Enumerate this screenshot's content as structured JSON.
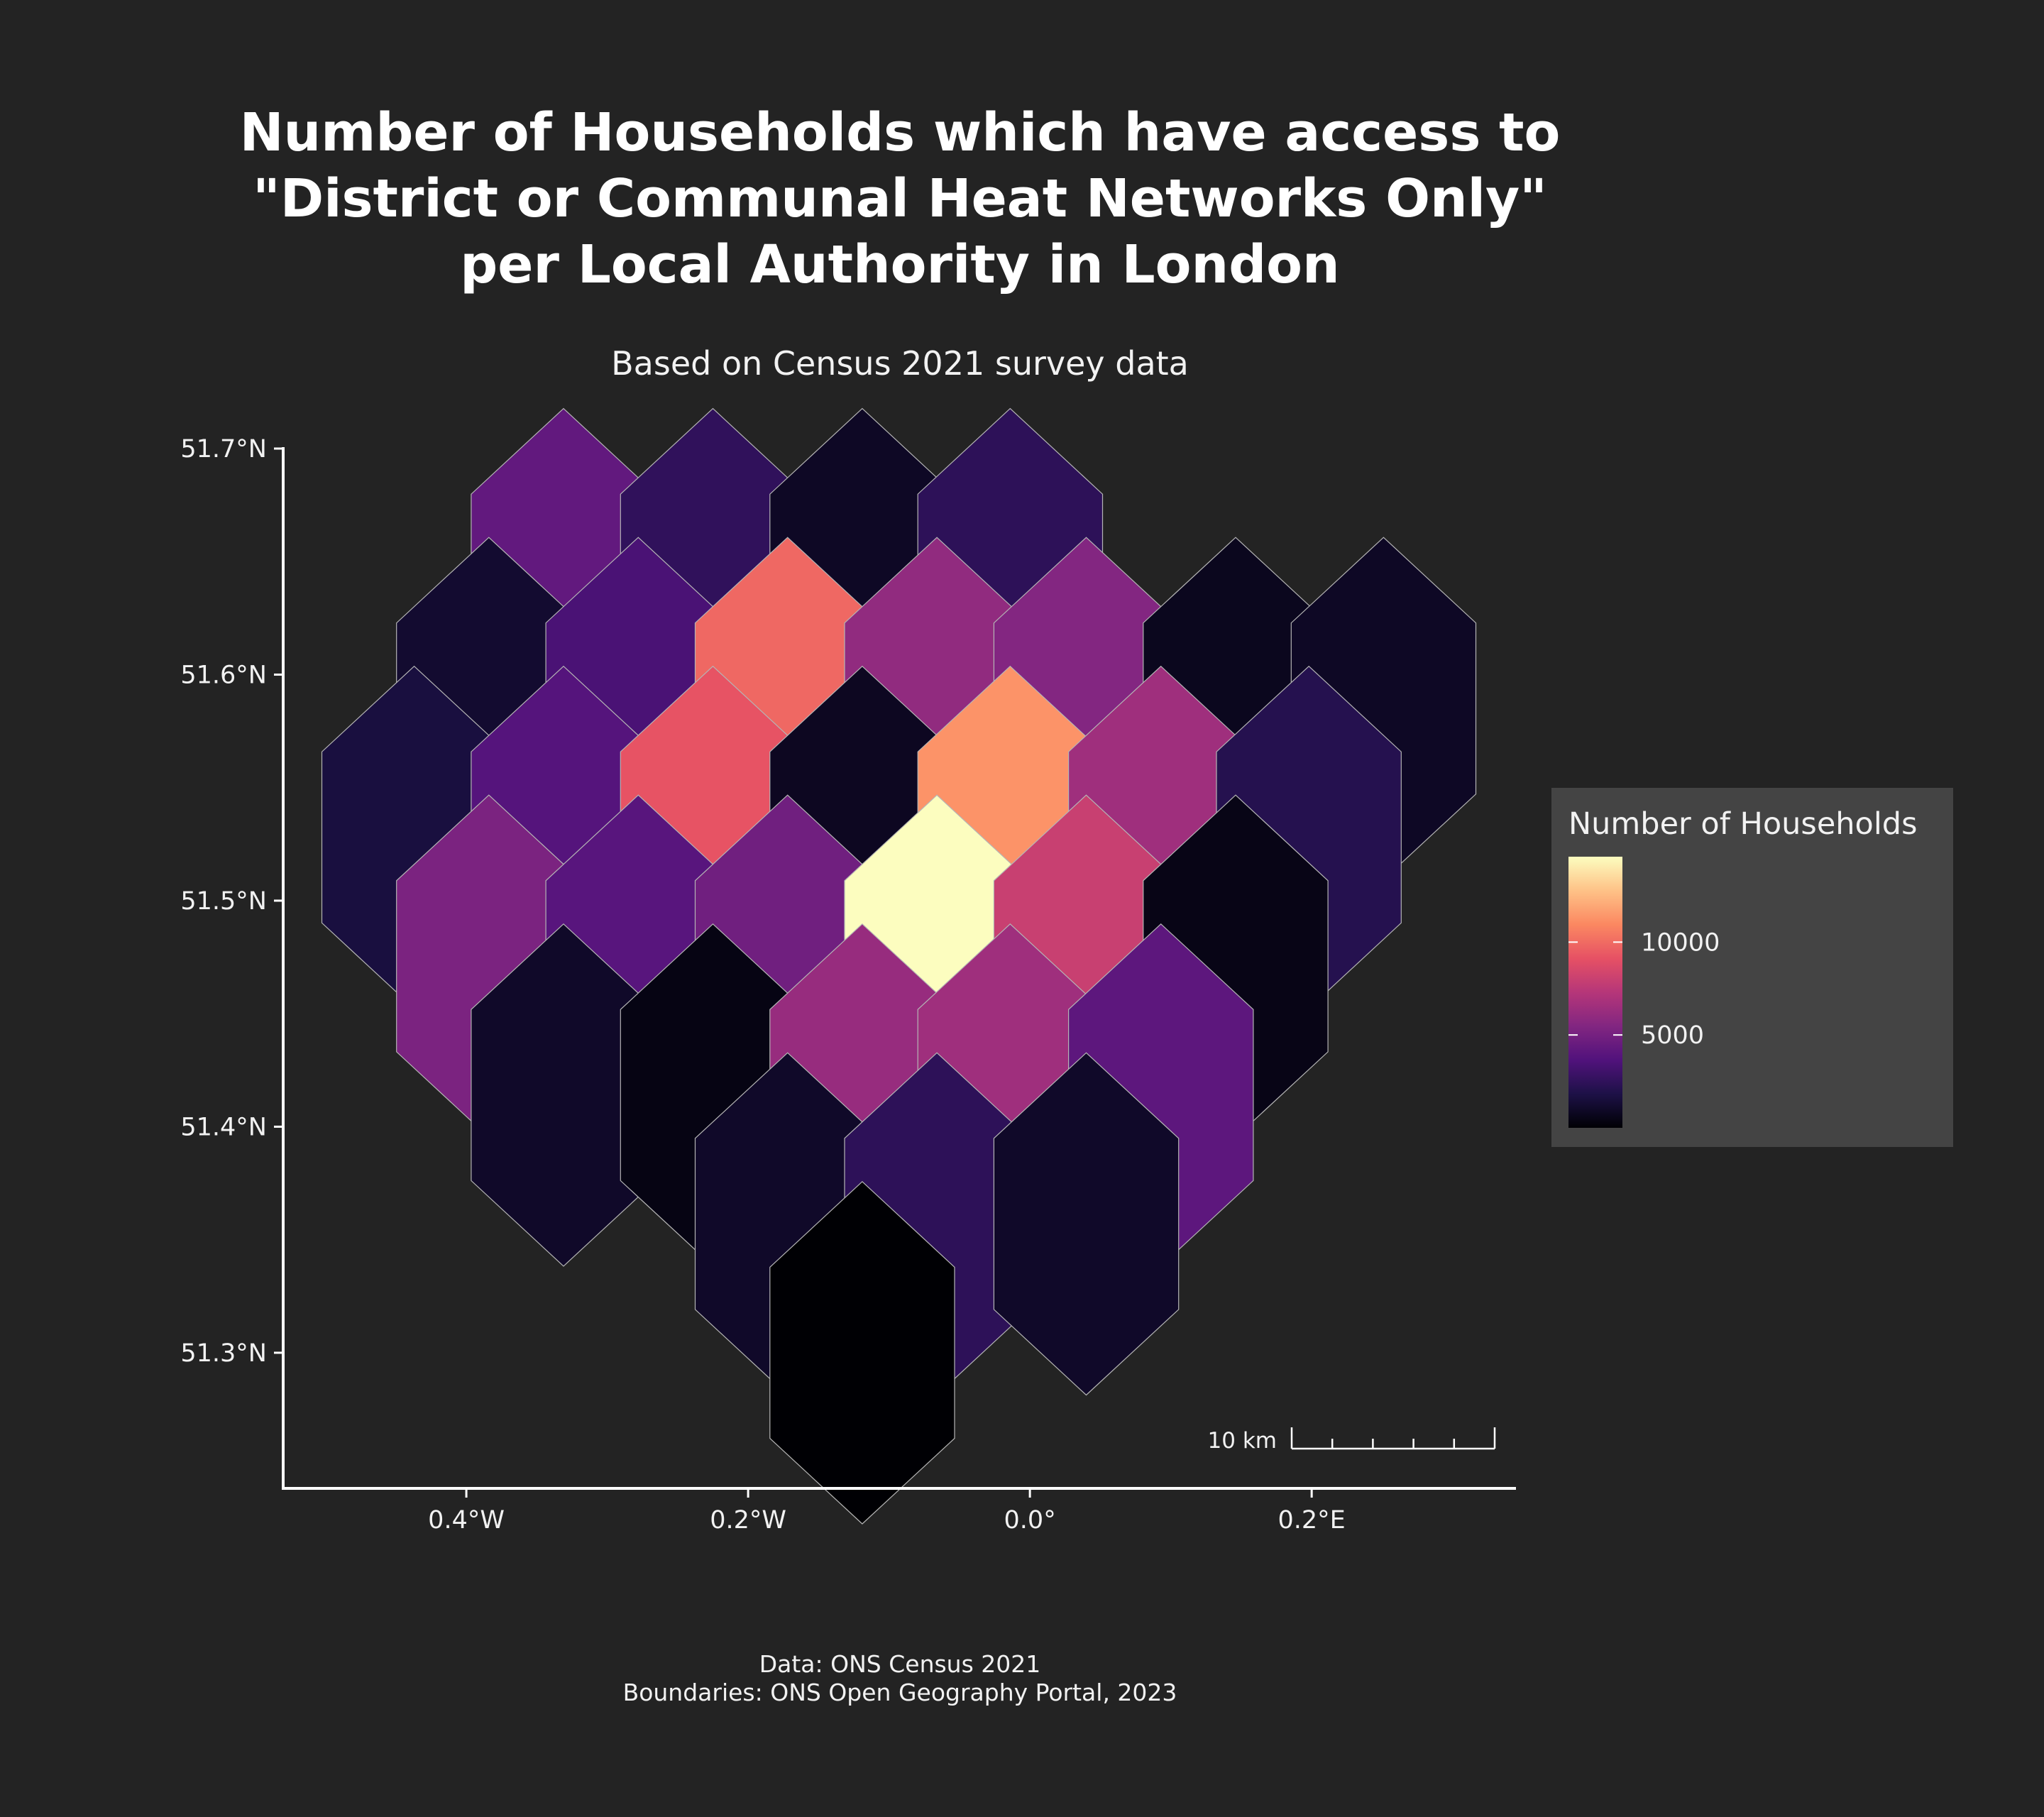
{
  "chart_data": {
    "type": "heatmap",
    "title_lines": [
      "Number of Households which have access to",
      "\"District or Communal Heat Networks Only\"",
      "per Local Authority in London"
    ],
    "subtitle": "Based on Census 2021 survey data",
    "x_axis": {
      "ticks": [
        -0.4,
        -0.2,
        0.0,
        0.2
      ],
      "tick_labels": [
        "0.4°W",
        "0.2°W",
        "0.0°",
        "0.2°E"
      ],
      "range": [
        -0.53,
        0.345
      ]
    },
    "y_axis": {
      "ticks": [
        51.7,
        51.6,
        51.5,
        51.4,
        51.3
      ],
      "tick_labels": [
        "51.7°N",
        "51.6°N",
        "51.5°N",
        "51.4°N",
        "51.3°N"
      ],
      "range": [
        51.24,
        51.7
      ]
    },
    "hex_radius_deg": 0.0757,
    "hexagons": [
      {
        "lon": -0.331,
        "lat": 51.642,
        "value": 4300
      },
      {
        "lon": -0.225,
        "lat": 51.642,
        "value": 2500
      },
      {
        "lon": -0.119,
        "lat": 51.642,
        "value": 900
      },
      {
        "lon": -0.014,
        "lat": 51.642,
        "value": 2400
      },
      {
        "lon": -0.384,
        "lat": 51.585,
        "value": 1200
      },
      {
        "lon": -0.278,
        "lat": 51.585,
        "value": 3400
      },
      {
        "lon": -0.172,
        "lat": 51.585,
        "value": 9900
      },
      {
        "lon": -0.066,
        "lat": 51.585,
        "value": 6000
      },
      {
        "lon": 0.04,
        "lat": 51.585,
        "value": 5500
      },
      {
        "lon": 0.146,
        "lat": 51.585,
        "value": 700
      },
      {
        "lon": 0.251,
        "lat": 51.585,
        "value": 900
      },
      {
        "lon": -0.437,
        "lat": 51.528,
        "value": 1600
      },
      {
        "lon": -0.331,
        "lat": 51.528,
        "value": 3800
      },
      {
        "lon": -0.225,
        "lat": 51.528,
        "value": 9200
      },
      {
        "lon": -0.119,
        "lat": 51.528,
        "value": 800
      },
      {
        "lon": -0.014,
        "lat": 51.528,
        "value": 11300
      },
      {
        "lon": 0.093,
        "lat": 51.528,
        "value": 6500
      },
      {
        "lon": 0.198,
        "lat": 51.528,
        "value": 2100
      },
      {
        "lon": -0.384,
        "lat": 51.471,
        "value": 5200
      },
      {
        "lon": -0.278,
        "lat": 51.471,
        "value": 3900
      },
      {
        "lon": -0.172,
        "lat": 51.471,
        "value": 4800
      },
      {
        "lon": -0.066,
        "lat": 51.471,
        "value": 14600
      },
      {
        "lon": 0.04,
        "lat": 51.471,
        "value": 8000
      },
      {
        "lon": 0.146,
        "lat": 51.471,
        "value": 500
      },
      {
        "lon": -0.331,
        "lat": 51.414,
        "value": 1000
      },
      {
        "lon": -0.225,
        "lat": 51.414,
        "value": 400
      },
      {
        "lon": -0.119,
        "lat": 51.414,
        "value": 6200
      },
      {
        "lon": -0.014,
        "lat": 51.414,
        "value": 6500
      },
      {
        "lon": 0.093,
        "lat": 51.414,
        "value": 4100
      },
      {
        "lon": -0.172,
        "lat": 51.357,
        "value": 1000
      },
      {
        "lon": -0.066,
        "lat": 51.357,
        "value": 2400
      },
      {
        "lon": 0.04,
        "lat": 51.357,
        "value": 1000
      },
      {
        "lon": -0.119,
        "lat": 51.3,
        "value": 0
      }
    ],
    "color_scale": {
      "name": "magma",
      "min": 0,
      "max": 14600,
      "stops": [
        "#000004",
        "#1d1147",
        "#51127c",
        "#822681",
        "#b63679",
        "#e65164",
        "#fb8861",
        "#fec287",
        "#fcfdbf"
      ]
    },
    "legend": {
      "title": "Number of Households",
      "ticks": [
        5000,
        10000
      ],
      "tick_labels": [
        "5000",
        "10000"
      ],
      "position": "right"
    },
    "scale_bar": {
      "label": "10 km"
    },
    "caption_lines": [
      "Data: ONS Census 2021",
      "Boundaries: ONS Open Geography Portal, 2023"
    ],
    "colors": {
      "background": "#232323",
      "legend_background": "#444444",
      "hex_border": "#b5b5b5",
      "axis_line": "#ffffff"
    }
  }
}
